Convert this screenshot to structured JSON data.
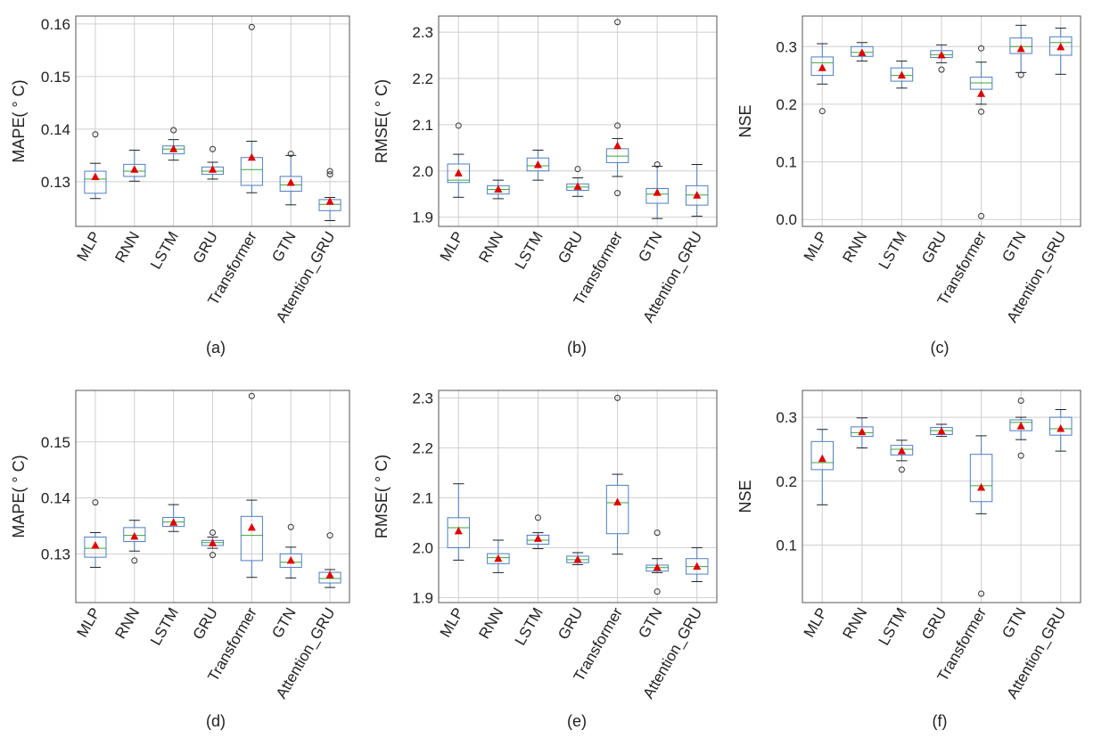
{
  "chart_data": [
    {
      "type": "box",
      "panel_label": "(a)",
      "ylabel": "MAPE( ° C)",
      "ylim": [
        0.1215,
        0.1615
      ],
      "yticks": [
        0.13,
        0.14,
        0.15,
        0.16
      ],
      "ytick_labels": [
        "0.13",
        "0.14",
        "0.15",
        "0.16"
      ],
      "grid": true,
      "categories": [
        "MLP",
        "RNN",
        "LSTM",
        "GRU",
        "Transformer",
        "GTN",
        "Attention_GRU"
      ],
      "boxes": [
        {
          "whislo": 0.1268,
          "q1": 0.1278,
          "med": 0.1305,
          "q3": 0.132,
          "whishi": 0.1335,
          "mean": 0.1309,
          "fliers": [
            0.139
          ]
        },
        {
          "whislo": 0.1301,
          "q1": 0.131,
          "med": 0.132,
          "q3": 0.1333,
          "whishi": 0.136,
          "mean": 0.1323,
          "fliers": []
        },
        {
          "whislo": 0.1341,
          "q1": 0.1353,
          "med": 0.1362,
          "q3": 0.1368,
          "whishi": 0.138,
          "mean": 0.1362,
          "fliers": [
            0.1398
          ]
        },
        {
          "whislo": 0.1305,
          "q1": 0.1314,
          "med": 0.132,
          "q3": 0.1328,
          "whishi": 0.1337,
          "mean": 0.1323,
          "fliers": [
            0.1362
          ]
        },
        {
          "whislo": 0.1279,
          "q1": 0.1293,
          "med": 0.1323,
          "q3": 0.1346,
          "whishi": 0.1377,
          "mean": 0.1346,
          "fliers": [
            0.1594
          ]
        },
        {
          "whislo": 0.1256,
          "q1": 0.1282,
          "med": 0.1294,
          "q3": 0.131,
          "whishi": 0.135,
          "mean": 0.1298,
          "fliers": [
            0.1353
          ]
        },
        {
          "whislo": 0.1226,
          "q1": 0.1245,
          "med": 0.1257,
          "q3": 0.1266,
          "whishi": 0.127,
          "mean": 0.1262,
          "fliers": [
            0.1314,
            0.132
          ]
        }
      ]
    },
    {
      "type": "box",
      "panel_label": "(b)",
      "ylabel": "RMSE( ° C)",
      "ylim": [
        1.88,
        2.335
      ],
      "yticks": [
        1.9,
        2.0,
        2.1,
        2.2,
        2.3
      ],
      "ytick_labels": [
        "1.9",
        "2.0",
        "2.1",
        "2.2",
        "2.3"
      ],
      "grid": true,
      "categories": [
        "MLP",
        "RNN",
        "LSTM",
        "GRU",
        "Transformer",
        "GTN",
        "Attention_GRU"
      ],
      "boxes": [
        {
          "whislo": 1.943,
          "q1": 1.975,
          "med": 1.98,
          "q3": 2.015,
          "whishi": 2.036,
          "mean": 1.995,
          "fliers": [
            2.098
          ]
        },
        {
          "whislo": 1.94,
          "q1": 1.95,
          "med": 1.96,
          "q3": 1.968,
          "whishi": 1.98,
          "mean": 1.96,
          "fliers": []
        },
        {
          "whislo": 1.98,
          "q1": 2.0,
          "med": 2.011,
          "q3": 2.028,
          "whishi": 2.045,
          "mean": 2.013,
          "fliers": []
        },
        {
          "whislo": 1.945,
          "q1": 1.958,
          "med": 1.965,
          "q3": 1.972,
          "whishi": 1.985,
          "mean": 1.966,
          "fliers": [
            2.004
          ]
        },
        {
          "whislo": 1.988,
          "q1": 2.018,
          "med": 2.032,
          "q3": 2.048,
          "whishi": 2.07,
          "mean": 2.054,
          "fliers": [
            2.322,
            2.098,
            1.952
          ]
        },
        {
          "whislo": 1.897,
          "q1": 1.93,
          "med": 1.95,
          "q3": 1.962,
          "whishi": 2.01,
          "mean": 1.953,
          "fliers": [
            2.014
          ]
        },
        {
          "whislo": 1.902,
          "q1": 1.926,
          "med": 1.948,
          "q3": 1.968,
          "whishi": 2.014,
          "mean": 1.947,
          "fliers": []
        }
      ]
    },
    {
      "type": "box",
      "panel_label": "(c)",
      "ylabel": "NSE",
      "ylim": [
        -0.012,
        0.353
      ],
      "yticks": [
        0.0,
        0.1,
        0.2,
        0.3
      ],
      "ytick_labels": [
        "0.0",
        "0.1",
        "0.2",
        "0.3"
      ],
      "grid": true,
      "categories": [
        "MLP",
        "RNN",
        "LSTM",
        "GRU",
        "Transformer",
        "GTN",
        "Attention_GRU"
      ],
      "boxes": [
        {
          "whislo": 0.235,
          "q1": 0.25,
          "med": 0.272,
          "q3": 0.282,
          "whishi": 0.305,
          "mean": 0.263,
          "fliers": [
            0.188
          ]
        },
        {
          "whislo": 0.275,
          "q1": 0.283,
          "med": 0.29,
          "q3": 0.3,
          "whishi": 0.307,
          "mean": 0.289,
          "fliers": []
        },
        {
          "whislo": 0.228,
          "q1": 0.24,
          "med": 0.25,
          "q3": 0.263,
          "whishi": 0.275,
          "mean": 0.25,
          "fliers": []
        },
        {
          "whislo": 0.272,
          "q1": 0.281,
          "med": 0.286,
          "q3": 0.293,
          "whishi": 0.303,
          "mean": 0.285,
          "fliers": [
            0.26
          ]
        },
        {
          "whislo": 0.2,
          "q1": 0.226,
          "med": 0.237,
          "q3": 0.247,
          "whishi": 0.273,
          "mean": 0.218,
          "fliers": [
            0.297,
            0.187,
            0.006
          ]
        },
        {
          "whislo": 0.255,
          "q1": 0.288,
          "med": 0.3,
          "q3": 0.315,
          "whishi": 0.337,
          "mean": 0.296,
          "fliers": [
            0.251
          ]
        },
        {
          "whislo": 0.252,
          "q1": 0.285,
          "med": 0.307,
          "q3": 0.317,
          "whishi": 0.332,
          "mean": 0.299,
          "fliers": []
        }
      ]
    },
    {
      "type": "box",
      "panel_label": "(d)",
      "ylabel": "MAPE( ° C)",
      "ylim": [
        0.1213,
        0.1592
      ],
      "yticks": [
        0.13,
        0.14,
        0.15
      ],
      "ytick_labels": [
        "0.13",
        "0.14",
        "0.15"
      ],
      "grid": true,
      "categories": [
        "MLP",
        "RNN",
        "LSTM",
        "GRU",
        "Transformer",
        "GTN",
        "Attention_GRU"
      ],
      "boxes": [
        {
          "whislo": 0.1276,
          "q1": 0.1294,
          "med": 0.131,
          "q3": 0.133,
          "whishi": 0.1338,
          "mean": 0.1315,
          "fliers": [
            0.1392
          ]
        },
        {
          "whislo": 0.1305,
          "q1": 0.1322,
          "med": 0.1333,
          "q3": 0.1347,
          "whishi": 0.136,
          "mean": 0.1331,
          "fliers": [
            0.1288
          ]
        },
        {
          "whislo": 0.134,
          "q1": 0.1349,
          "med": 0.1357,
          "q3": 0.1365,
          "whishi": 0.1388,
          "mean": 0.1356,
          "fliers": []
        },
        {
          "whislo": 0.131,
          "q1": 0.1315,
          "med": 0.132,
          "q3": 0.1324,
          "whishi": 0.133,
          "mean": 0.1319,
          "fliers": [
            0.1298,
            0.1338
          ]
        },
        {
          "whislo": 0.1258,
          "q1": 0.1288,
          "med": 0.1333,
          "q3": 0.1367,
          "whishi": 0.1396,
          "mean": 0.1347,
          "fliers": [
            0.1582
          ]
        },
        {
          "whislo": 0.1257,
          "q1": 0.1276,
          "med": 0.1285,
          "q3": 0.13,
          "whishi": 0.1312,
          "mean": 0.1288,
          "fliers": [
            0.1348
          ]
        },
        {
          "whislo": 0.124,
          "q1": 0.1248,
          "med": 0.1256,
          "q3": 0.1267,
          "whishi": 0.1272,
          "mean": 0.1262,
          "fliers": [
            0.1333
          ]
        }
      ]
    },
    {
      "type": "box",
      "panel_label": "(e)",
      "ylabel": "RMSE( ° C)",
      "ylim": [
        1.89,
        2.315
      ],
      "yticks": [
        1.9,
        2.0,
        2.1,
        2.2,
        2.3
      ],
      "ytick_labels": [
        "1.9",
        "2.0",
        "2.1",
        "2.2",
        "2.3"
      ],
      "grid": true,
      "categories": [
        "MLP",
        "RNN",
        "LSTM",
        "GRU",
        "Transformer",
        "GTN",
        "Attention_GRU"
      ],
      "boxes": [
        {
          "whislo": 1.975,
          "q1": 2.0,
          "med": 2.04,
          "q3": 2.06,
          "whishi": 2.128,
          "mean": 2.033,
          "fliers": []
        },
        {
          "whislo": 1.95,
          "q1": 1.968,
          "med": 1.98,
          "q3": 1.988,
          "whishi": 2.015,
          "mean": 1.978,
          "fliers": []
        },
        {
          "whislo": 1.998,
          "q1": 2.007,
          "med": 2.015,
          "q3": 2.025,
          "whishi": 2.03,
          "mean": 2.018,
          "fliers": [
            2.06
          ]
        },
        {
          "whislo": 1.966,
          "q1": 1.97,
          "med": 1.976,
          "q3": 1.983,
          "whishi": 1.99,
          "mean": 1.976,
          "fliers": []
        },
        {
          "whislo": 1.987,
          "q1": 2.028,
          "med": 2.09,
          "q3": 2.125,
          "whishi": 2.147,
          "mean": 2.091,
          "fliers": [
            2.3
          ]
        },
        {
          "whislo": 1.95,
          "q1": 1.953,
          "med": 1.96,
          "q3": 1.965,
          "whishi": 1.978,
          "mean": 1.96,
          "fliers": [
            2.03,
            1.912
          ]
        },
        {
          "whislo": 1.932,
          "q1": 1.947,
          "med": 1.962,
          "q3": 1.978,
          "whishi": 2.0,
          "mean": 1.962,
          "fliers": []
        }
      ]
    },
    {
      "type": "box",
      "panel_label": "(f)",
      "ylabel": "NSE",
      "ylim": [
        0.01,
        0.342
      ],
      "yticks": [
        0.1,
        0.2,
        0.3
      ],
      "ytick_labels": [
        "0.1",
        "0.2",
        "0.3"
      ],
      "grid": true,
      "categories": [
        "MLP",
        "RNN",
        "LSTM",
        "GRU",
        "Transformer",
        "GTN",
        "Attention_GRU"
      ],
      "boxes": [
        {
          "whislo": 0.163,
          "q1": 0.218,
          "med": 0.229,
          "q3": 0.262,
          "whishi": 0.281,
          "mean": 0.235,
          "fliers": []
        },
        {
          "whislo": 0.252,
          "q1": 0.27,
          "med": 0.276,
          "q3": 0.285,
          "whishi": 0.299,
          "mean": 0.277,
          "fliers": []
        },
        {
          "whislo": 0.232,
          "q1": 0.241,
          "med": 0.25,
          "q3": 0.256,
          "whishi": 0.264,
          "mean": 0.247,
          "fliers": [
            0.218
          ]
        },
        {
          "whislo": 0.27,
          "q1": 0.273,
          "med": 0.279,
          "q3": 0.284,
          "whishi": 0.289,
          "mean": 0.278,
          "fliers": []
        },
        {
          "whislo": 0.149,
          "q1": 0.168,
          "med": 0.193,
          "q3": 0.242,
          "whishi": 0.271,
          "mean": 0.19,
          "fliers": [
            0.024
          ]
        },
        {
          "whislo": 0.265,
          "q1": 0.279,
          "med": 0.292,
          "q3": 0.296,
          "whishi": 0.3,
          "mean": 0.286,
          "fliers": [
            0.24,
            0.326
          ]
        },
        {
          "whislo": 0.247,
          "q1": 0.272,
          "med": 0.282,
          "q3": 0.3,
          "whishi": 0.312,
          "mean": 0.282,
          "fliers": []
        }
      ]
    }
  ],
  "style": {
    "box_color": "#4d7fc0",
    "median_color": "#3aa63a",
    "mean_marker_color": "#e00000",
    "flier_color": "#333333",
    "grid_color": "#cfcfcf",
    "axis_color": "#555555"
  }
}
